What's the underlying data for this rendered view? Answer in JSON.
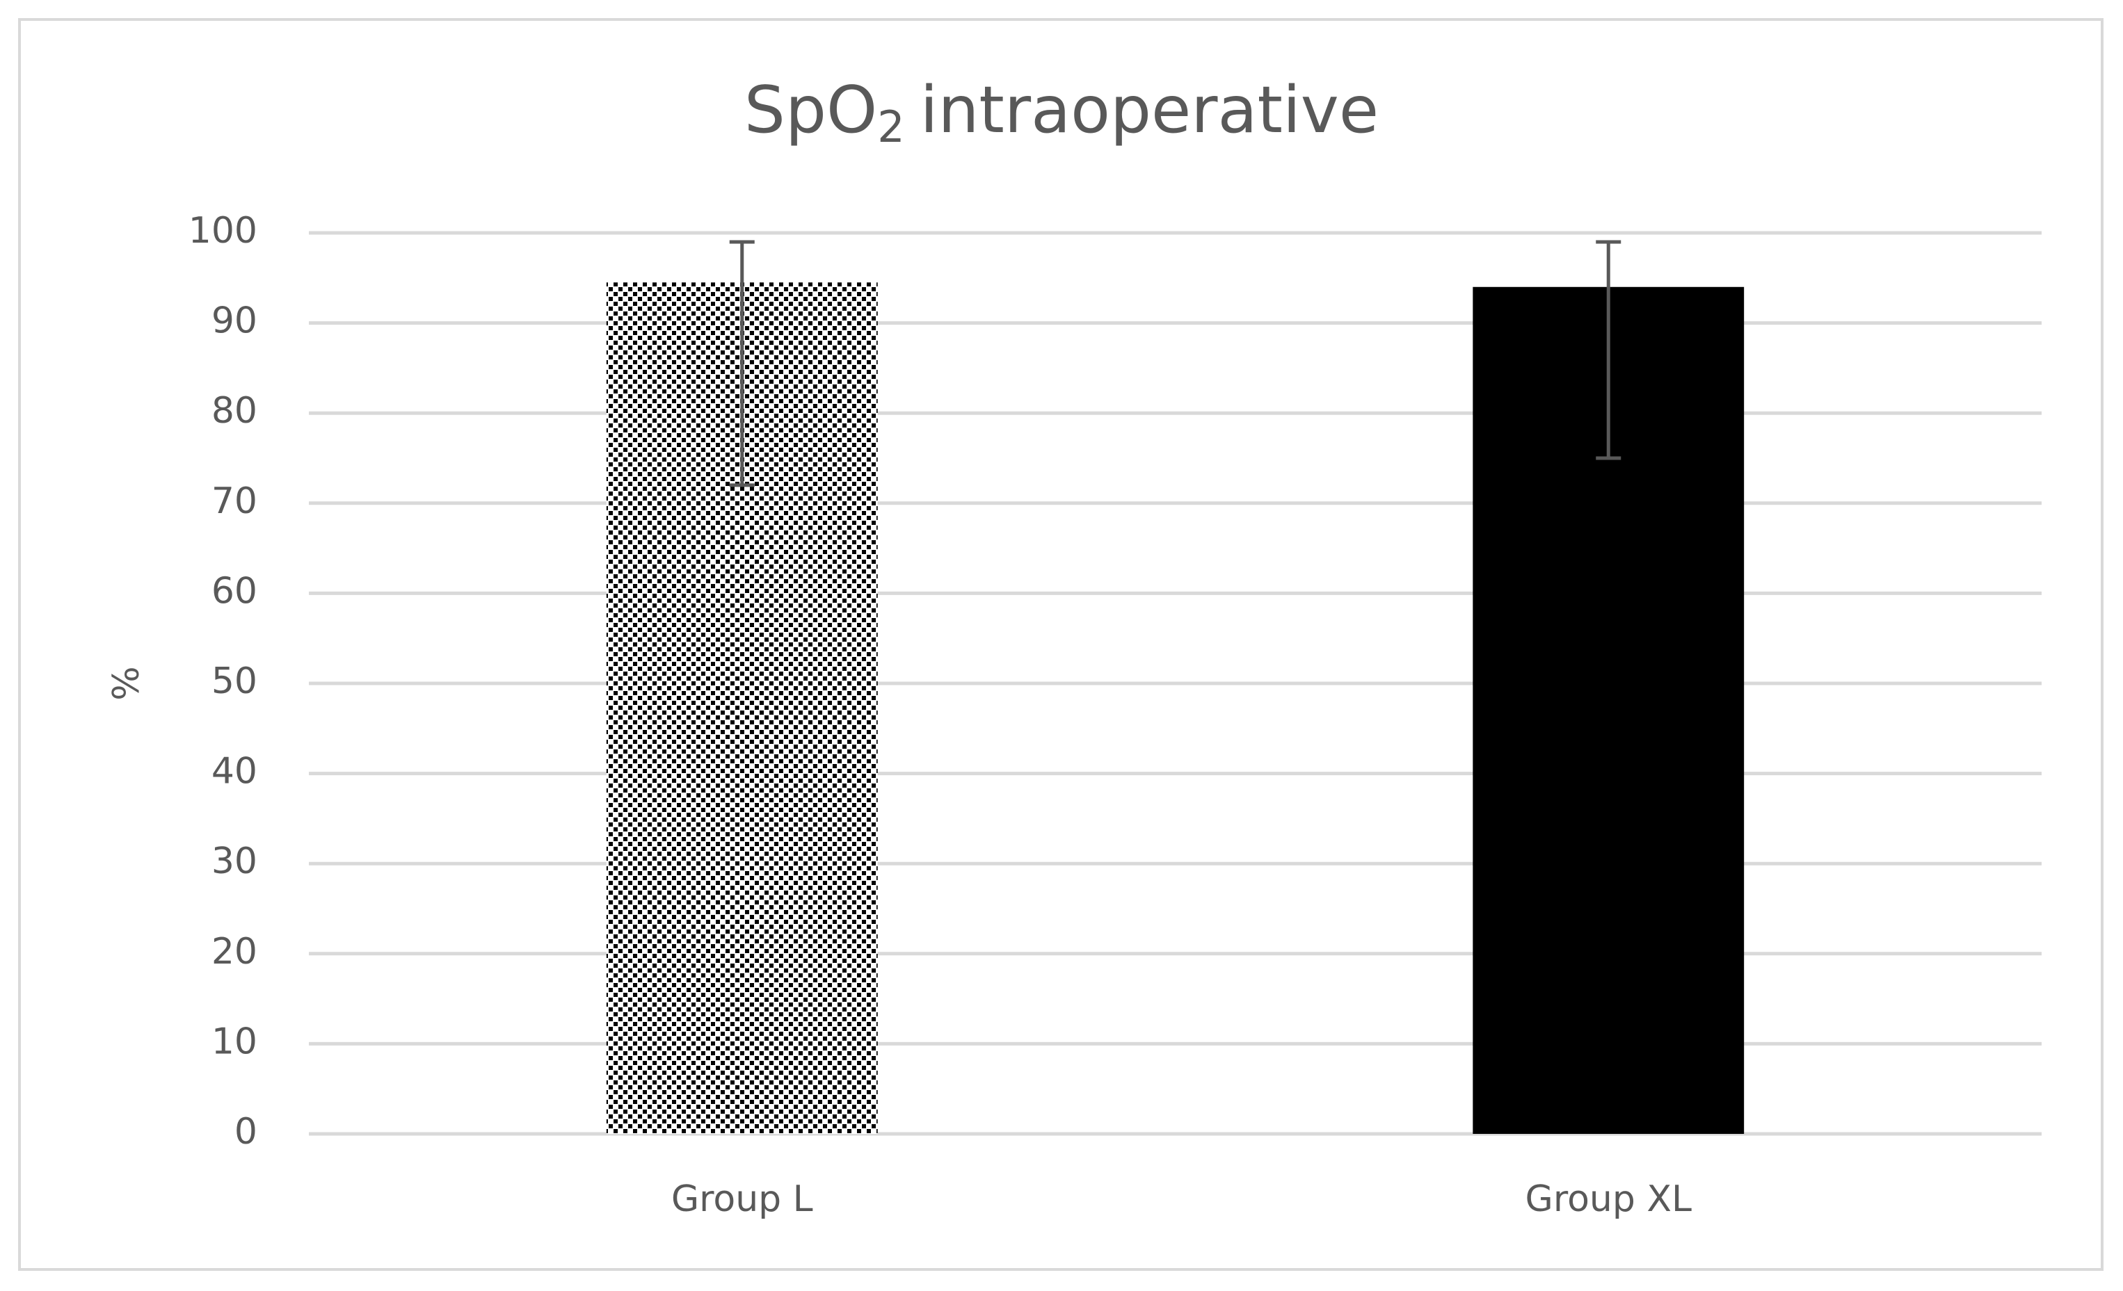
{
  "chart_data": {
    "type": "bar",
    "title": [
      "SpO",
      "2",
      "intraoperative"
    ],
    "ylabel": "%",
    "categories": [
      "Group L",
      "Group XL"
    ],
    "values": [
      94.5,
      94
    ],
    "error_low": [
      72,
      75
    ],
    "error_high": [
      99,
      99
    ],
    "patterns": [
      "dots",
      "solid"
    ],
    "colors": [
      "#000000",
      "#000000"
    ],
    "ylim": [
      0,
      100
    ],
    "yticks": [
      0,
      10,
      20,
      30,
      40,
      50,
      60,
      70,
      80,
      90,
      100
    ],
    "grid": true
  }
}
